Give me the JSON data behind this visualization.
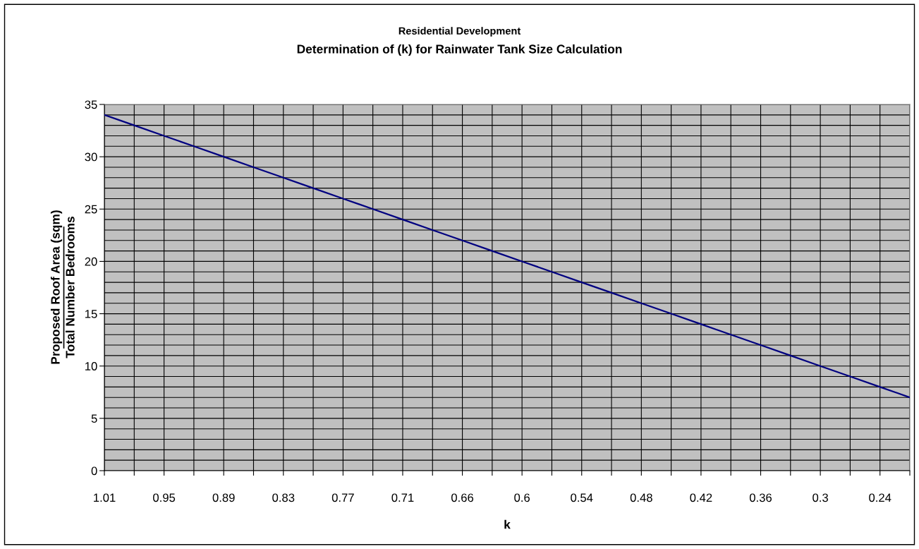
{
  "chart_data": {
    "type": "line",
    "title": "Residential Development",
    "subtitle": "Determination of (k) for Rainwater Tank Size Calculation",
    "xlabel": "k",
    "ylabel": "Proposed Roof Area (sqm)\nTotal Number Bedrooms",
    "categories": [
      "1.01",
      null,
      "0.95",
      null,
      "0.89",
      null,
      "0.83",
      null,
      "0.77",
      null,
      "0.71",
      null,
      "0.66",
      null,
      "0.6",
      null,
      "0.54",
      null,
      "0.48",
      null,
      "0.42",
      null,
      "0.36",
      null,
      "0.3",
      null,
      "0.24",
      null
    ],
    "series": [
      {
        "color": "#000080",
        "values": [
          34,
          33,
          32,
          31,
          30,
          29,
          28,
          27,
          26,
          25,
          24,
          23,
          22,
          21,
          20,
          19,
          18,
          17,
          16,
          15,
          14,
          13,
          12,
          11,
          10,
          9,
          8,
          7
        ]
      }
    ],
    "ylim": [
      0,
      35
    ],
    "yticks": [
      0,
      {
        "value": 1,
        "label": null
      },
      {
        "value": 2,
        "label": null
      },
      {
        "value": 3,
        "label": null
      },
      {
        "value": 4,
        "label": null
      },
      5,
      {
        "value": 6,
        "label": null
      },
      {
        "value": 7,
        "label": null
      },
      {
        "value": 8,
        "label": null
      },
      {
        "value": 9,
        "label": null
      },
      10,
      {
        "value": 11,
        "label": null
      },
      {
        "value": 12,
        "label": null
      },
      {
        "value": 13,
        "label": null
      },
      {
        "value": 14,
        "label": null
      },
      15,
      {
        "value": 16,
        "label": null
      },
      {
        "value": 17,
        "label": null
      },
      {
        "value": 18,
        "label": null
      },
      {
        "value": 19,
        "label": null
      },
      20,
      {
        "value": 21,
        "label": null
      },
      {
        "value": 22,
        "label": null
      },
      {
        "value": 23,
        "label": null
      },
      {
        "value": 24,
        "label": null
      },
      25,
      {
        "value": 26,
        "label": null
      },
      {
        "value": 27,
        "label": null
      },
      {
        "value": 28,
        "label": null
      },
      {
        "value": 29,
        "label": null
      },
      30,
      {
        "value": 31,
        "label": null
      },
      {
        "value": 32,
        "label": null
      },
      {
        "value": 33,
        "label": null
      },
      {
        "value": 34,
        "label": null
      },
      35
    ],
    "grid": true,
    "line_style": "solid",
    "marker": "none"
  }
}
